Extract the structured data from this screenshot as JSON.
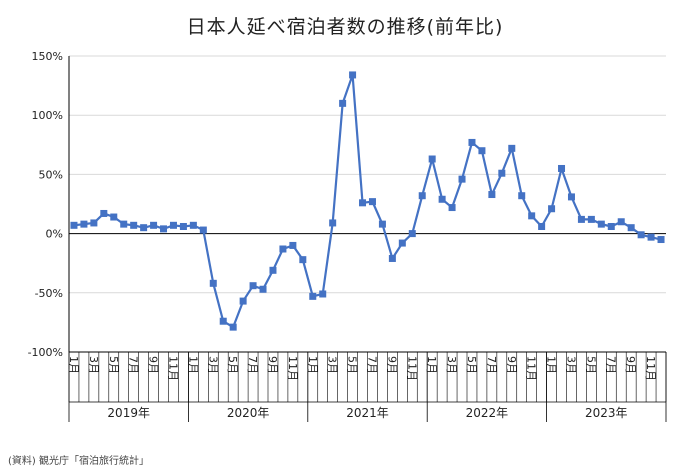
{
  "chart_data": {
    "type": "line",
    "title": "日本人延べ宿泊者数の推移(前年比)",
    "ylabel": "",
    "xlabel": "",
    "ylim": [
      -100,
      150
    ],
    "yticks": [
      150,
      100,
      50,
      0,
      -50,
      -100
    ],
    "ytick_labels": [
      "150%",
      "100%",
      "50%",
      "0%",
      "-50%",
      "-100%"
    ],
    "grid": true,
    "legend": "none",
    "line_color": "#4472c4",
    "month_labels": [
      "1月",
      "",
      "3月",
      "",
      "5月",
      "",
      "7月",
      "",
      "9月",
      "",
      "11月",
      ""
    ],
    "years": [
      "2019年",
      "2020年",
      "2021年",
      "2022年",
      "2023年"
    ],
    "series": [
      {
        "values": [
          7,
          8,
          9,
          17,
          14,
          8,
          7,
          5,
          7,
          4,
          7,
          6,
          7,
          3,
          -42,
          -74,
          -79,
          -57,
          -44,
          -47,
          -31,
          -13,
          -10,
          -22,
          -53,
          -51,
          9,
          110,
          134,
          26,
          27,
          8,
          -21,
          -8,
          0,
          32,
          63,
          29,
          22,
          46,
          77,
          70,
          33,
          51,
          72,
          32,
          15,
          6,
          21,
          55,
          31,
          12,
          12,
          8,
          6,
          10,
          5,
          -1,
          -3,
          -5
        ]
      }
    ]
  },
  "source_note": "(資料) 観光庁「宿泊旅行統計」"
}
